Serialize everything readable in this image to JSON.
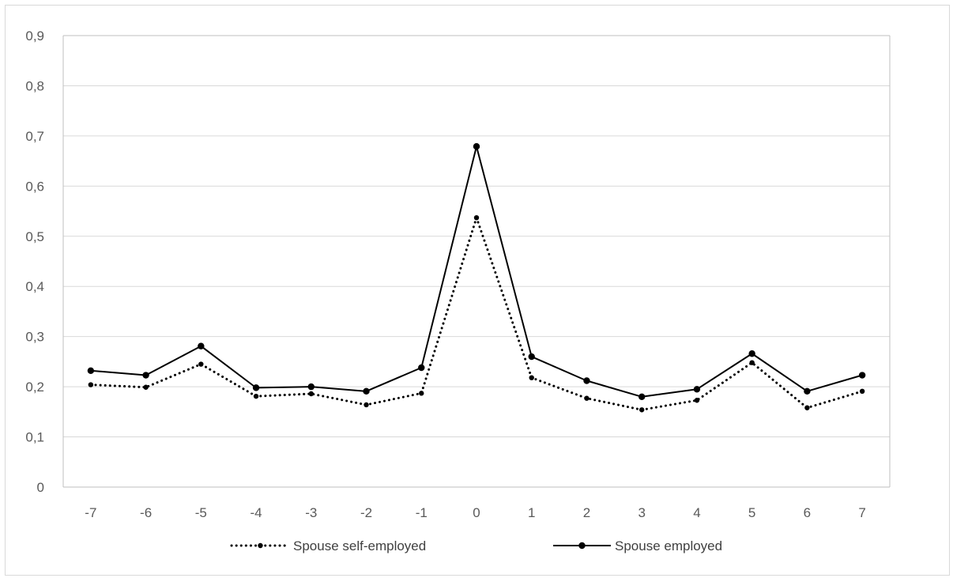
{
  "chart_data": {
    "type": "line",
    "categories": [
      "-7",
      "-6",
      "-5",
      "-4",
      "-3",
      "-2",
      "-1",
      "0",
      "1",
      "2",
      "3",
      "4",
      "5",
      "6",
      "7"
    ],
    "series": [
      {
        "name": "Spouse self-employed",
        "style": "dotted",
        "color": "#000000",
        "values": [
          0.204,
          0.199,
          0.245,
          0.181,
          0.186,
          0.164,
          0.187,
          0.537,
          0.218,
          0.177,
          0.154,
          0.173,
          0.248,
          0.158,
          0.191
        ]
      },
      {
        "name": "Spouse employed",
        "style": "solid",
        "color": "#000000",
        "values": [
          0.232,
          0.223,
          0.281,
          0.198,
          0.2,
          0.191,
          0.238,
          0.679,
          0.26,
          0.212,
          0.18,
          0.195,
          0.266,
          0.191,
          0.223
        ]
      }
    ],
    "y_ticks": [
      "0",
      "0,1",
      "0,2",
      "0,3",
      "0,4",
      "0,5",
      "0,6",
      "0,7",
      "0,8",
      "0,9"
    ],
    "ylim": [
      0,
      0.9
    ],
    "grid": true,
    "legend_position": "bottom",
    "title": "",
    "xlabel": "",
    "ylabel": ""
  }
}
